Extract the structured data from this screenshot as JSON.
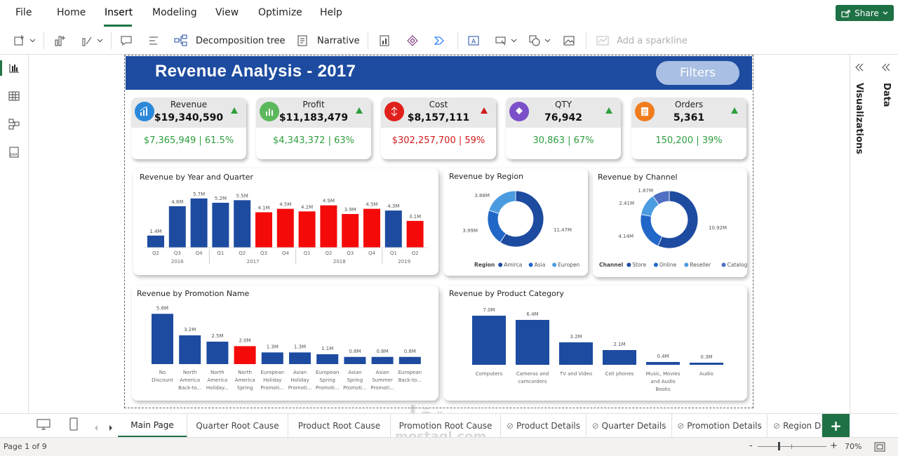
{
  "menu": {
    "items": [
      "File",
      "Home",
      "Insert",
      "Modeling",
      "View",
      "Optimize",
      "Help"
    ],
    "active": "Insert",
    "share": "Share"
  },
  "toolbar": {
    "decomposition": "Decomposition tree",
    "narrative": "Narrative",
    "sparkline": "Add a sparkline"
  },
  "report": {
    "title": "Revenue Analysis - 2017",
    "filters": "Filters"
  },
  "kpis": [
    {
      "label": "Revenue",
      "value": "$19,340,590",
      "sub": "$7,365,949 | 61.5%",
      "trend": "up",
      "icon": "chart-icon",
      "icon_color": "#2c88d9",
      "sub_color": "#2e9e3e"
    },
    {
      "label": "Profit",
      "value": "$11,183,479",
      "sub": "$4,343,372 | 63%",
      "trend": "up",
      "icon": "bar-chart-icon",
      "icon_color": "#5cb85c",
      "sub_color": "#2e9e3e"
    },
    {
      "label": "Cost",
      "value": "$8,157,111",
      "sub": "$302,257,700 | 59%",
      "trend": "up-red",
      "icon": "cost-icon",
      "icon_color": "#e0201b",
      "sub_color": "#d01a1a"
    },
    {
      "label": "QTY",
      "value": "76,942",
      "sub": "30,863 | 67%",
      "trend": "up",
      "icon": "boxes-icon",
      "icon_color": "#7b4fc9",
      "sub_color": "#2e9e3e"
    },
    {
      "label": "Orders",
      "value": "5,361",
      "sub": "150,200 | 39%",
      "trend": "up",
      "icon": "clipboard-icon",
      "icon_color": "#f07c1e",
      "sub_color": "#2e9e3e"
    }
  ],
  "charts": {
    "year_quarter": {
      "title": "Revenue by Year and Quarter",
      "type": "bar",
      "categories": [
        "Q2",
        "Q3",
        "Q4",
        "Q1",
        "Q2",
        "Q3",
        "Q4",
        "Q1",
        "Q2",
        "Q3",
        "Q4",
        "Q1",
        "Q2"
      ],
      "years": [
        {
          "label": "2016",
          "span": [
            0,
            2
          ]
        },
        {
          "label": "2017",
          "span": [
            3,
            6
          ]
        },
        {
          "label": "2018",
          "span": [
            7,
            10
          ]
        },
        {
          "label": "2019",
          "span": [
            11,
            12
          ]
        }
      ],
      "values": [
        1.4,
        4.8,
        5.7,
        5.2,
        5.5,
        4.1,
        4.5,
        4.2,
        4.9,
        3.9,
        4.5,
        4.3,
        3.1
      ],
      "labels": [
        "1.4M",
        "4.8M",
        "5.7M",
        "5.2M",
        "5.5M",
        "4.1M",
        "4.5M",
        "4.2M",
        "4.9M",
        "3.9M",
        "4.5M",
        "4.3M",
        "3.1M"
      ],
      "colors": [
        "#1d4ba0",
        "#1d4ba0",
        "#1d4ba0",
        "#1d4ba0",
        "#1d4ba0",
        "#f50a0a",
        "#f50a0a",
        "#f50a0a",
        "#f50a0a",
        "#f50a0a",
        "#f50a0a",
        "#1d4ba0",
        "#f50a0a"
      ]
    },
    "region": {
      "title": "Revenue by Region",
      "type": "pie",
      "legend_title": "Region",
      "slices": [
        {
          "name": "Amirca",
          "value": 11.47,
          "label": "11.47M",
          "color": "#1d4ba0"
        },
        {
          "name": "Asia",
          "value": 3.99,
          "label": "3.99M",
          "color": "#2167c8"
        },
        {
          "name": "Europen",
          "value": 3.88,
          "label": "3.88M",
          "color": "#4a9be0"
        }
      ]
    },
    "channel": {
      "title": "Revenue by Channel",
      "type": "pie",
      "legend_title": "Channel",
      "slices": [
        {
          "name": "Store",
          "value": 10.92,
          "label": "10.92M",
          "color": "#1d4ba0"
        },
        {
          "name": "Online",
          "value": 4.14,
          "label": "4.14M",
          "color": "#2167c8"
        },
        {
          "name": "Reseller",
          "value": 2.41,
          "label": "2.41M",
          "color": "#4a9be0"
        },
        {
          "name": "Catalog",
          "value": 1.87,
          "label": "1.87M",
          "color": "#4f6fc2"
        }
      ]
    },
    "promotion": {
      "title": "Revenue by Promotion Name",
      "type": "bar",
      "categories": [
        "No Discount",
        "North America Back-to...",
        "North America Holiday...",
        "North America Spring ...",
        "European Holiday Promoti...",
        "Asian Holiday Promoti...",
        "European Spring Promoti...",
        "Asian Spring Promoti...",
        "Asian Summer Promoti...",
        "European Back-to..."
      ],
      "values": [
        5.6,
        3.2,
        2.5,
        2.0,
        1.3,
        1.3,
        1.1,
        0.8,
        0.8,
        0.8
      ],
      "labels": [
        "5.6M",
        "3.2M",
        "2.5M",
        "2.0M",
        "1.3M",
        "1.3M",
        "1.1M",
        "0.8M",
        "0.8M",
        "0.8M"
      ],
      "colors": [
        "#1d4ba0",
        "#1d4ba0",
        "#1d4ba0",
        "#f50a0a",
        "#1d4ba0",
        "#1d4ba0",
        "#1d4ba0",
        "#1d4ba0",
        "#1d4ba0",
        "#1d4ba0"
      ]
    },
    "product": {
      "title": "Revenue by Product Category",
      "type": "bar",
      "categories": [
        "Computers",
        "Cameras and camcorders",
        "TV and Video",
        "Cell phones",
        "Music, Movies and Audio Books",
        "Audio"
      ],
      "values": [
        7.0,
        6.4,
        3.2,
        2.1,
        0.4,
        0.3
      ],
      "labels": [
        "7.0M",
        "6.4M",
        "3.2M",
        "2.1M",
        "0.4M",
        "0.3M"
      ],
      "colors": [
        "#1d4ba0",
        "#1d4ba0",
        "#1d4ba0",
        "#1d4ba0",
        "#1d4ba0",
        "#1d4ba0"
      ]
    }
  },
  "right_pane": {
    "visualizations": "Visualizations",
    "data": "Data"
  },
  "pages": {
    "tabs": [
      "Main Page",
      "Quarter Root Cause",
      "Product Root Cause",
      "Promotion Root Cause",
      "Product Details",
      "Quarter Details",
      "Promotion Details",
      "Region De"
    ],
    "active": "Main Page"
  },
  "status": {
    "page": "Page 1 of 9",
    "zoom": "70%",
    "minus": "-",
    "plus": "+"
  },
  "watermark": {
    "arabic": "مستقل",
    "latin": "mostaql.com"
  }
}
